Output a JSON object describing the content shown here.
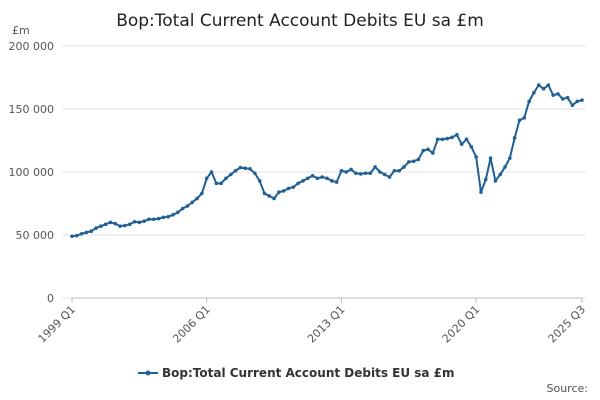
{
  "chart_data": {
    "type": "line",
    "title": "Bop:Total Current Account Debits EU sa £m",
    "y_unit": "£m",
    "source": "Source:",
    "categories": [
      "1999 Q1",
      null,
      null,
      null,
      null,
      null,
      null,
      null,
      null,
      null,
      null,
      null,
      null,
      null,
      null,
      null,
      null,
      null,
      null,
      null,
      null,
      null,
      null,
      null,
      null,
      null,
      null,
      null,
      "2006 Q1",
      null,
      null,
      null,
      null,
      null,
      null,
      null,
      null,
      null,
      null,
      null,
      null,
      null,
      null,
      null,
      null,
      null,
      null,
      null,
      null,
      null,
      null,
      null,
      null,
      null,
      null,
      null,
      "2013 Q1",
      null,
      null,
      null,
      null,
      null,
      null,
      null,
      null,
      null,
      null,
      null,
      null,
      null,
      null,
      null,
      null,
      null,
      null,
      null,
      null,
      null,
      null,
      null,
      null,
      null,
      null,
      null,
      "2020 Q1",
      null,
      null,
      null,
      null,
      null,
      null,
      null,
      null,
      null,
      null,
      null,
      null,
      null,
      null,
      null,
      null,
      null,
      null,
      null,
      null,
      null,
      "2025 Q3"
    ],
    "series": [
      {
        "name": "Bop:Total Current Account Debits EU sa £m",
        "color": "#206095",
        "values": [
          49000,
          49500,
          51000,
          52000,
          53000,
          55500,
          57000,
          58500,
          60000,
          59000,
          57000,
          57500,
          58500,
          60500,
          60000,
          61000,
          62500,
          62500,
          63000,
          64000,
          64500,
          66000,
          68000,
          71000,
          73000,
          76000,
          79000,
          83000,
          95000,
          100000,
          91000,
          91000,
          95000,
          98000,
          101000,
          103500,
          103000,
          102500,
          99000,
          93000,
          83000,
          81000,
          79000,
          84000,
          85000,
          87000,
          88000,
          91000,
          93000,
          95000,
          97000,
          95000,
          96000,
          95000,
          93000,
          92000,
          101000,
          100000,
          102000,
          99000,
          98500,
          99000,
          99000,
          104000,
          100000,
          98000,
          96000,
          101000,
          101000,
          104000,
          108000,
          108500,
          110000,
          117000,
          118000,
          115000,
          126000,
          126000,
          126500,
          127500,
          129500,
          122000,
          126000,
          120000,
          112000,
          84000,
          94000,
          111000,
          93000,
          98000,
          104000,
          111000,
          127000,
          141000,
          143000,
          156000,
          163000,
          169000,
          166000,
          169000,
          161000,
          162000,
          158000,
          159000,
          153000,
          156000,
          157000
        ]
      }
    ],
    "ylim": [
      0,
      200000
    ],
    "yticks": [
      0,
      {
        "value": 50000,
        "label": "50 000"
      },
      {
        "value": 100000,
        "label": "100 000"
      },
      {
        "value": 150000,
        "label": "150 000"
      },
      {
        "value": 200000,
        "label": "200 000"
      }
    ],
    "grid": true
  }
}
